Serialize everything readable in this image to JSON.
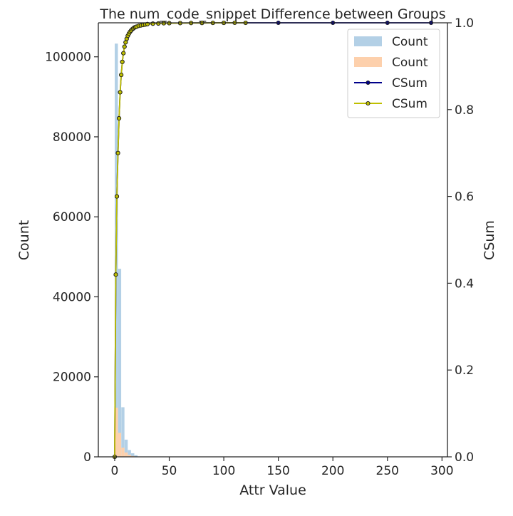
{
  "chart_data": {
    "type": "bar",
    "title": "The num_code_snippet Difference between Groups",
    "xlabel": "Attr Value",
    "ylabel": "Count",
    "y2label": "CSum",
    "xlim": [
      -15,
      305
    ],
    "ylim": [
      0,
      108500
    ],
    "y2lim": [
      0,
      1.0
    ],
    "xticks": [
      0,
      50,
      100,
      150,
      200,
      250,
      300
    ],
    "yticks": [
      0,
      20000,
      40000,
      60000,
      80000,
      100000
    ],
    "y2ticks": [
      0.0,
      0.2,
      0.4,
      0.6,
      0.8,
      1.0
    ],
    "legend_position": "top-right",
    "grid": false,
    "colors": {
      "blue_bar": "#b3d0e6",
      "orange_bar": "#fdd0ac",
      "navy_line": "#00008b",
      "yellow_line": "#bfbf00",
      "axis": "#262626"
    },
    "legend": [
      {
        "label": "Count",
        "kind": "patch",
        "color": "#b3d0e6"
      },
      {
        "label": "Count",
        "kind": "patch",
        "color": "#fdd0ac"
      },
      {
        "label": "CSum",
        "kind": "line",
        "color": "#00008b",
        "marker_fill": "#00008b"
      },
      {
        "label": "CSum",
        "kind": "line",
        "color": "#bfbf00",
        "marker_fill": "#bfbf00"
      }
    ],
    "bar_width": 2.9,
    "series": [
      {
        "legend_label": "Count",
        "kind": "bar",
        "color": "#b3d0e6",
        "x": [
          1.5,
          4.5,
          7.5,
          10.5,
          13.5,
          16.5,
          19.5
        ],
        "values": [
          103300,
          47000,
          12400,
          4300,
          1700,
          900,
          400
        ]
      },
      {
        "legend_label": "Count",
        "kind": "bar",
        "color": "#fdd0ac",
        "x": [
          1.5,
          4.5,
          7.5,
          10.5,
          13.5,
          16.5
        ],
        "values": [
          12300,
          6000,
          2300,
          1100,
          500,
          200
        ]
      },
      {
        "legend_label": "CSum",
        "kind": "line",
        "color": "#00008b",
        "x": [
          0,
          1,
          2,
          3,
          4,
          5,
          6,
          7,
          8,
          9,
          10,
          11,
          12,
          13,
          14,
          15,
          16,
          17,
          18,
          19,
          20,
          22,
          24,
          26,
          28,
          30,
          35,
          40,
          45,
          50,
          60,
          70,
          80,
          90,
          100,
          120,
          150,
          200,
          250,
          290
        ],
        "values": [
          0.0,
          0.42,
          0.6,
          0.7,
          0.78,
          0.84,
          0.88,
          0.91,
          0.93,
          0.945,
          0.955,
          0.963,
          0.97,
          0.975,
          0.979,
          0.982,
          0.985,
          0.987,
          0.989,
          0.99,
          0.991,
          0.993,
          0.994,
          0.995,
          0.996,
          0.997,
          0.998,
          0.9985,
          0.999,
          0.9992,
          0.9994,
          0.9996,
          0.9997,
          0.9998,
          0.9999,
          0.99995,
          1.0,
          1.0,
          1.0,
          1.0
        ]
      },
      {
        "legend_label": "CSum",
        "kind": "line",
        "color": "#bfbf00",
        "x": [
          0,
          1,
          2,
          3,
          4,
          5,
          6,
          7,
          8,
          9,
          10,
          11,
          12,
          13,
          14,
          15,
          16,
          17,
          18,
          19,
          20,
          22,
          24,
          26,
          28,
          30,
          35,
          40,
          45,
          50,
          60,
          70,
          80,
          90,
          100,
          110,
          120
        ],
        "values": [
          0.0,
          0.42,
          0.6,
          0.7,
          0.78,
          0.84,
          0.88,
          0.91,
          0.93,
          0.945,
          0.955,
          0.963,
          0.97,
          0.975,
          0.979,
          0.982,
          0.985,
          0.987,
          0.989,
          0.99,
          0.991,
          0.993,
          0.994,
          0.995,
          0.996,
          0.997,
          0.998,
          0.9985,
          0.999,
          0.9992,
          0.9994,
          0.9996,
          0.9997,
          0.9998,
          0.9999,
          1.0,
          1.0
        ]
      }
    ]
  }
}
